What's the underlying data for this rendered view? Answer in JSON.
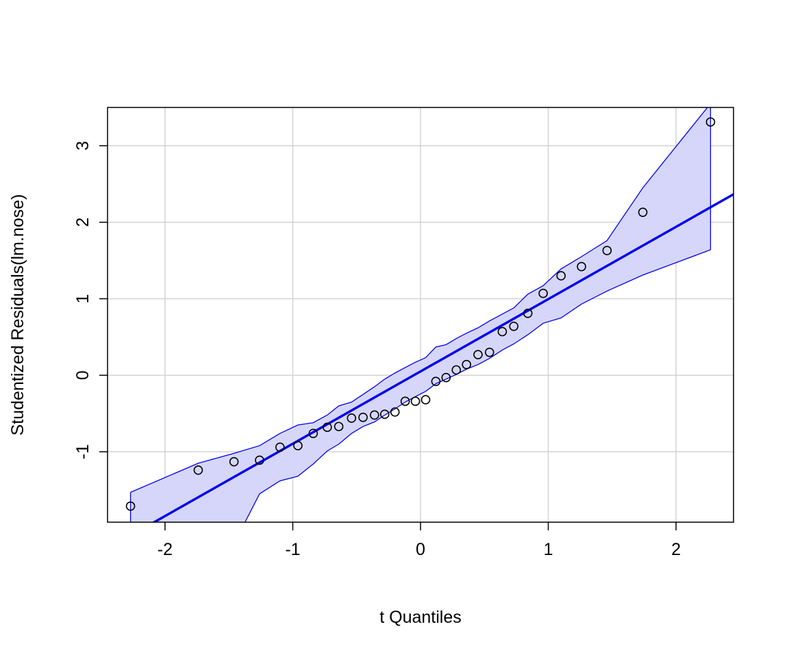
{
  "chart_data": {
    "type": "scatter",
    "title": "",
    "xlabel": "t Quantiles",
    "ylabel": "Studentized Residuals(lm.nose)",
    "xlim": [
      -2.45,
      2.45
    ],
    "ylim": [
      -1.92,
      3.5
    ],
    "x_ticks": [
      -2,
      -1,
      0,
      1,
      2
    ],
    "x_tick_labels": [
      "-2",
      "-1",
      "0",
      "1",
      "2"
    ],
    "y_ticks": [
      -1,
      0,
      1,
      2,
      3
    ],
    "y_tick_labels": [
      "-1",
      "0",
      "1",
      "2",
      "3"
    ],
    "grid": true,
    "colors": {
      "points": "#000000",
      "line": "#0000ee",
      "band_fill": "#d6d6fa",
      "band_edge": "#0000ee",
      "grid": "#d3d3d3"
    },
    "points": {
      "x": [
        -2.27,
        -1.74,
        -1.46,
        -1.26,
        -1.1,
        -0.96,
        -0.84,
        -0.73,
        -0.64,
        -0.54,
        -0.45,
        -0.36,
        -0.28,
        -0.2,
        -0.12,
        -0.04,
        0.04,
        0.12,
        0.2,
        0.28,
        0.36,
        0.45,
        0.54,
        0.64,
        0.73,
        0.84,
        0.96,
        1.1,
        1.26,
        1.46,
        1.74,
        2.27
      ],
      "y": [
        -1.71,
        -1.24,
        -1.13,
        -1.11,
        -0.94,
        -0.92,
        -0.76,
        -0.68,
        -0.67,
        -0.56,
        -0.55,
        -0.52,
        -0.51,
        -0.48,
        -0.34,
        -0.34,
        -0.32,
        -0.08,
        -0.03,
        0.07,
        0.14,
        0.27,
        0.3,
        0.57,
        0.64,
        0.81,
        1.07,
        1.3,
        1.42,
        1.63,
        2.13,
        3.31
      ]
    },
    "reference_line": {
      "intercept": 0.05,
      "slope": 0.945
    },
    "confidence_band": {
      "x": [
        -2.27,
        -1.74,
        -1.46,
        -1.26,
        -1.1,
        -0.96,
        -0.84,
        -0.73,
        -0.64,
        -0.54,
        -0.45,
        -0.36,
        -0.28,
        -0.2,
        -0.12,
        -0.04,
        0.04,
        0.12,
        0.2,
        0.28,
        0.36,
        0.45,
        0.54,
        0.64,
        0.73,
        0.84,
        0.96,
        1.1,
        1.26,
        1.46,
        1.74,
        2.27
      ],
      "upper": [
        -1.53,
        -1.15,
        -1.02,
        -0.92,
        -0.76,
        -0.65,
        -0.62,
        -0.52,
        -0.4,
        -0.35,
        -0.25,
        -0.15,
        -0.05,
        0.03,
        0.1,
        0.17,
        0.23,
        0.37,
        0.4,
        0.48,
        0.55,
        0.62,
        0.71,
        0.8,
        0.88,
        1.06,
        1.17,
        1.39,
        1.55,
        1.76,
        2.45,
        3.55
      ],
      "lower": [
        -2.3,
        -2.25,
        -2.2,
        -1.55,
        -1.38,
        -1.32,
        -1.16,
        -0.99,
        -0.9,
        -0.76,
        -0.67,
        -0.61,
        -0.52,
        -0.44,
        -0.35,
        -0.28,
        -0.21,
        -0.11,
        -0.05,
        0.01,
        0.08,
        0.14,
        0.22,
        0.33,
        0.41,
        0.53,
        0.68,
        0.75,
        0.93,
        1.1,
        1.31,
        1.64
      ]
    }
  }
}
